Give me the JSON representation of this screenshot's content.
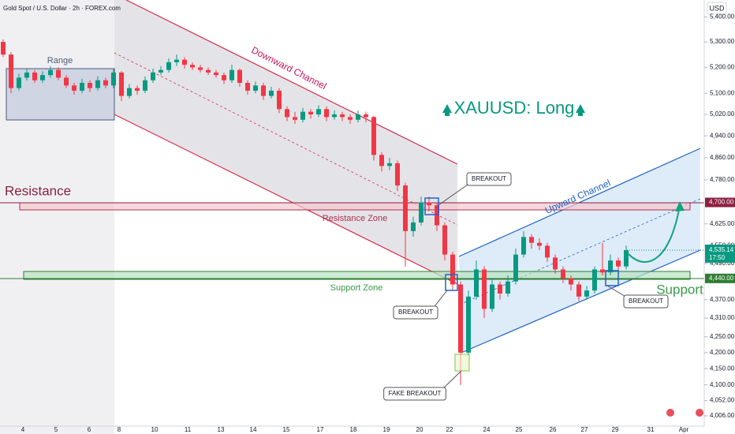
{
  "chart_data": {
    "type": "candlestick",
    "title": "Gold Spot / U.S. Dollar · 2h · FOREX.com",
    "currency": "USD",
    "headline": "XAUUSD: Long",
    "annotations": {
      "range": "Range",
      "downward_channel": "Downward Channel",
      "resistance": "Resistance",
      "resistance_zone": "Resistance Zone",
      "support_zone": "Support Zone",
      "support": "Support",
      "upward_channel": "Upward Channel"
    },
    "callouts": [
      "BREAKOUT",
      "BREAKOUT",
      "BREAKOUT",
      "FAKE BREAKOUT"
    ],
    "log_scale": true,
    "ylim": [
      3987,
      5469
    ],
    "yticks": [
      {
        "value": 5400,
        "label": "5,400.00"
      },
      {
        "value": 5300,
        "label": "5,300.00"
      },
      {
        "value": 5200,
        "label": "5,200.00"
      },
      {
        "value": 5100,
        "label": "5,100.00"
      },
      {
        "value": 5020,
        "label": "5,020.00"
      },
      {
        "value": 4940,
        "label": "4,940.00"
      },
      {
        "value": 4860,
        "label": "4,860.00"
      },
      {
        "value": 4780,
        "label": "4,780.00"
      },
      {
        "value": 4625,
        "label": "4,625.00"
      },
      {
        "value": 4550,
        "label": "4,550.00"
      },
      {
        "value": 4490,
        "label": "4,490.00"
      },
      {
        "value": 4370,
        "label": "4,370.00"
      },
      {
        "value": 4310,
        "label": "4,310.00"
      },
      {
        "value": 4250,
        "label": "4,250.00"
      },
      {
        "value": 4200,
        "label": "4,200.00"
      },
      {
        "value": 4150,
        "label": "4,150.00"
      },
      {
        "value": 4100,
        "label": "4,100.00"
      },
      {
        "value": 4052,
        "label": "4,052.00"
      },
      {
        "value": 4006,
        "label": "4,006.00"
      }
    ],
    "levels": [
      {
        "value": 4700,
        "label": "4,700.00",
        "color": "#8b2040"
      },
      {
        "value": 4440,
        "label": "4,440.00",
        "color": "#2e7d32"
      }
    ],
    "last_price": {
      "value": 4535.14,
      "label": "4,535.14",
      "time": "17:50",
      "color": "#089981"
    },
    "x_labels": [
      "4",
      "5",
      "6",
      "8",
      "10",
      "11",
      "13",
      "14",
      "15",
      "17",
      "18",
      "19",
      "20",
      "22",
      "24",
      "25",
      "26",
      "27",
      "29",
      "31",
      "Apr"
    ],
    "up_color": "#089981",
    "down_color": "#f23645",
    "candles": [
      [
        5300,
        5310,
        5240,
        5250
      ],
      [
        5250,
        5260,
        5100,
        5120
      ],
      [
        5120,
        5175,
        5110,
        5160
      ],
      [
        5160,
        5195,
        5150,
        5180
      ],
      [
        5180,
        5190,
        5140,
        5150
      ],
      [
        5150,
        5185,
        5140,
        5170
      ],
      [
        5170,
        5205,
        5160,
        5190
      ],
      [
        5190,
        5200,
        5150,
        5160
      ],
      [
        5160,
        5170,
        5120,
        5130
      ],
      [
        5130,
        5140,
        5095,
        5110
      ],
      [
        5110,
        5155,
        5100,
        5140
      ],
      [
        5140,
        5150,
        5105,
        5120
      ],
      [
        5120,
        5165,
        5110,
        5150
      ],
      [
        5150,
        5160,
        5120,
        5130
      ],
      [
        5130,
        5195,
        5120,
        5180
      ],
      [
        5180,
        5185,
        5070,
        5090
      ],
      [
        5090,
        5135,
        5080,
        5120
      ],
      [
        5120,
        5130,
        5095,
        5110
      ],
      [
        5110,
        5165,
        5100,
        5150
      ],
      [
        5150,
        5195,
        5140,
        5180
      ],
      [
        5180,
        5205,
        5170,
        5190
      ],
      [
        5190,
        5235,
        5180,
        5220
      ],
      [
        5220,
        5250,
        5205,
        5230
      ],
      [
        5230,
        5240,
        5195,
        5210
      ],
      [
        5210,
        5220,
        5190,
        5200
      ],
      [
        5200,
        5210,
        5180,
        5190
      ],
      [
        5190,
        5200,
        5170,
        5180
      ],
      [
        5180,
        5190,
        5160,
        5170
      ],
      [
        5170,
        5180,
        5135,
        5150
      ],
      [
        5150,
        5210,
        5140,
        5190
      ],
      [
        5190,
        5195,
        5125,
        5140
      ],
      [
        5140,
        5150,
        5095,
        5110
      ],
      [
        5110,
        5145,
        5100,
        5130
      ],
      [
        5130,
        5140,
        5075,
        5090
      ],
      [
        5090,
        5125,
        5080,
        5110
      ],
      [
        5110,
        5120,
        5025,
        5040
      ],
      [
        5040,
        5050,
        4995,
        5010
      ],
      [
        5010,
        5030,
        4985,
        5000
      ],
      [
        5000,
        5045,
        4990,
        5030
      ],
      [
        5030,
        5040,
        5005,
        5020
      ],
      [
        5020,
        5055,
        5010,
        5040
      ],
      [
        5040,
        5050,
        4995,
        5010
      ],
      [
        5010,
        5035,
        5000,
        5020
      ],
      [
        5020,
        5030,
        4995,
        5010
      ],
      [
        5010,
        5020,
        4985,
        5000
      ],
      [
        5000,
        5035,
        4990,
        5020
      ],
      [
        5020,
        5030,
        4990,
        5010
      ],
      [
        5010,
        5015,
        4850,
        4870
      ],
      [
        4870,
        4880,
        4810,
        4830
      ],
      [
        4830,
        4860,
        4815,
        4840
      ],
      [
        4840,
        4850,
        4740,
        4760
      ],
      [
        4760,
        4770,
        4480,
        4600
      ],
      [
        4600,
        4650,
        4580,
        4630
      ],
      [
        4630,
        4720,
        4620,
        4700
      ],
      [
        4700,
        4720,
        4670,
        4690
      ],
      [
        4690,
        4700,
        4600,
        4620
      ],
      [
        4620,
        4630,
        4500,
        4520
      ],
      [
        4520,
        4530,
        4400,
        4420
      ],
      [
        4420,
        4430,
        4100,
        4200
      ],
      [
        4200,
        4400,
        4190,
        4380
      ],
      [
        4380,
        4500,
        4370,
        4470
      ],
      [
        4470,
        4480,
        4310,
        4340
      ],
      [
        4340,
        4440,
        4330,
        4420
      ],
      [
        4420,
        4430,
        4370,
        4390
      ],
      [
        4390,
        4450,
        4380,
        4430
      ],
      [
        4430,
        4540,
        4420,
        4520
      ],
      [
        4520,
        4600,
        4510,
        4580
      ],
      [
        4580,
        4590,
        4540,
        4560
      ],
      [
        4560,
        4575,
        4535,
        4550
      ],
      [
        4550,
        4560,
        4495,
        4510
      ],
      [
        4510,
        4520,
        4455,
        4470
      ],
      [
        4470,
        4480,
        4425,
        4440
      ],
      [
        4440,
        4450,
        4400,
        4420
      ],
      [
        4420,
        4430,
        4365,
        4380
      ],
      [
        4380,
        4415,
        4370,
        4400
      ],
      [
        4400,
        4480,
        4390,
        4470
      ],
      [
        4470,
        4560,
        4450,
        4460
      ],
      [
        4460,
        4520,
        4450,
        4500
      ],
      [
        4500,
        4510,
        4465,
        4480
      ],
      [
        4480,
        4550,
        4470,
        4535.14
      ]
    ]
  }
}
